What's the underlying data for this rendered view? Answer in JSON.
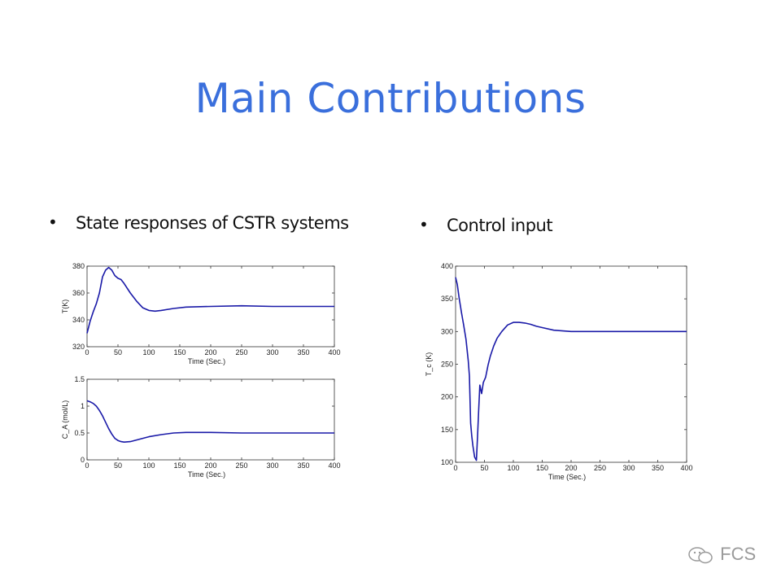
{
  "slide": {
    "title": "Main Contributions",
    "bullets": [
      {
        "text": "State responses of CSTR systems"
      },
      {
        "text": "Control input"
      }
    ],
    "footer": {
      "brand": "FCS",
      "icon": "wechat-icon"
    }
  },
  "chart_data": [
    {
      "type": "line",
      "title": "",
      "xlabel": "Time (Sec.)",
      "ylabel": "T(K)",
      "xlim": [
        0,
        400
      ],
      "ylim": [
        320,
        380
      ],
      "xticks": [
        0,
        50,
        100,
        150,
        200,
        250,
        300,
        350,
        400
      ],
      "yticks": [
        320,
        340,
        360,
        380
      ],
      "grid": false,
      "color": "#1a1aa8",
      "series": [
        {
          "x": [
            0,
            5,
            10,
            15,
            20,
            25,
            30,
            35,
            40,
            45,
            50,
            55,
            60,
            70,
            80,
            90,
            100,
            110,
            120,
            140,
            160,
            200,
            250,
            300,
            350,
            400
          ],
          "y": [
            330,
            339,
            346,
            352,
            360,
            372,
            377,
            379,
            377,
            373,
            371,
            370,
            367,
            360,
            354,
            349,
            347,
            346.5,
            347,
            348.5,
            349.5,
            350,
            350.5,
            350,
            350,
            350
          ]
        }
      ]
    },
    {
      "type": "line",
      "title": "",
      "xlabel": "Time (Sec.)",
      "ylabel": "C_A (mol/L)",
      "xlim": [
        0,
        400
      ],
      "ylim": [
        0,
        1.5
      ],
      "xticks": [
        0,
        50,
        100,
        150,
        200,
        250,
        300,
        350,
        400
      ],
      "yticks": [
        0,
        0.5,
        1,
        1.5
      ],
      "grid": false,
      "color": "#1a1aa8",
      "series": [
        {
          "x": [
            0,
            5,
            10,
            15,
            20,
            25,
            30,
            35,
            40,
            45,
            50,
            55,
            60,
            70,
            80,
            90,
            100,
            120,
            140,
            160,
            180,
            200,
            250,
            300,
            350,
            400
          ],
          "y": [
            1.1,
            1.08,
            1.05,
            1.0,
            0.92,
            0.82,
            0.7,
            0.58,
            0.48,
            0.4,
            0.36,
            0.34,
            0.33,
            0.34,
            0.37,
            0.4,
            0.43,
            0.47,
            0.5,
            0.51,
            0.51,
            0.51,
            0.5,
            0.5,
            0.5,
            0.5
          ]
        }
      ]
    },
    {
      "type": "line",
      "title": "",
      "xlabel": "Time (Sec.)",
      "ylabel": "T_c (K)",
      "xlim": [
        0,
        400
      ],
      "ylim": [
        100,
        400
      ],
      "xticks": [
        0,
        50,
        100,
        150,
        200,
        250,
        300,
        350,
        400
      ],
      "yticks": [
        100,
        150,
        200,
        250,
        300,
        350,
        400
      ],
      "grid": false,
      "color": "#1a1aa8",
      "series": [
        {
          "x": [
            0,
            3,
            6,
            10,
            14,
            18,
            22,
            24,
            26,
            28,
            30,
            33,
            36,
            38,
            40,
            42,
            45,
            48,
            52,
            56,
            60,
            66,
            72,
            80,
            90,
            100,
            110,
            120,
            130,
            140,
            150,
            170,
            200,
            250,
            300,
            350,
            400
          ],
          "y": [
            383,
            372,
            352,
            330,
            310,
            288,
            255,
            232,
            160,
            140,
            125,
            108,
            103,
            140,
            180,
            218,
            205,
            222,
            230,
            248,
            262,
            278,
            290,
            300,
            310,
            314,
            314,
            313,
            311,
            308,
            306,
            302,
            300,
            300,
            300,
            300,
            300
          ]
        }
      ]
    }
  ]
}
